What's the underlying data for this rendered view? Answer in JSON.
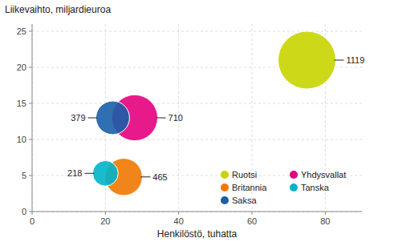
{
  "chart_data": {
    "type": "bubble",
    "x_label": "Henkilöstö, tuhatta",
    "y_label": "Liikevaihto, miljardieuroa",
    "xlim": [
      0,
      90
    ],
    "ylim": [
      0,
      26
    ],
    "xticks": [
      0,
      20,
      40,
      60,
      80
    ],
    "yticks": [
      0,
      5,
      10,
      15,
      20,
      25
    ],
    "grid": true,
    "legend": "lower right",
    "data_labels": true,
    "series": [
      {
        "name": "Ruotsi",
        "color": "#c8d400",
        "x": [
          75
        ],
        "values": [
          21
        ],
        "sizes": [
          1119
        ]
      },
      {
        "name": "Yhdysvallat",
        "color": "#e6007e",
        "x": [
          28
        ],
        "values": [
          13
        ],
        "sizes": [
          710
        ]
      },
      {
        "name": "Britannia",
        "color": "#f07800",
        "x": [
          25
        ],
        "values": [
          4.8
        ],
        "sizes": [
          465
        ]
      },
      {
        "name": "Tanska",
        "color": "#00b4c8",
        "x": [
          20
        ],
        "values": [
          5.3
        ],
        "sizes": [
          218
        ]
      },
      {
        "name": "Saksa",
        "color": "#1a5fa8",
        "x": [
          22
        ],
        "values": [
          13
        ],
        "sizes": [
          379
        ]
      }
    ]
  }
}
